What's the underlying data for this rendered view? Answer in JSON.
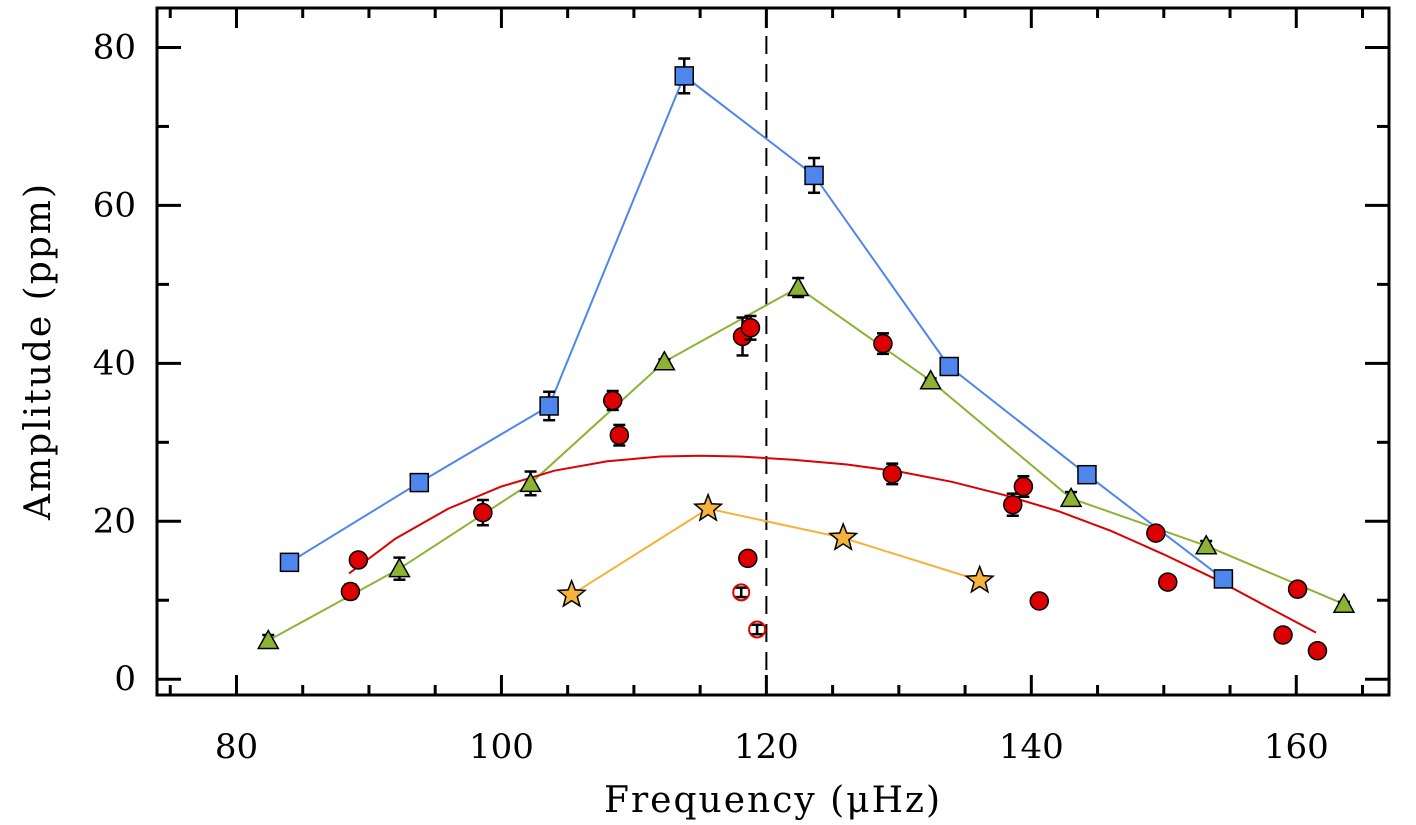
{
  "chart_data": {
    "type": "scatter",
    "title": "",
    "xlabel": "Frequency (μHz)",
    "ylabel": "Amplitude (ppm)",
    "xlim": [
      74,
      167
    ],
    "ylim": [
      -2,
      85
    ],
    "x_ticks": [
      80,
      100,
      120,
      140,
      160
    ],
    "y_ticks": [
      0,
      20,
      40,
      60,
      80
    ],
    "x_tick_labels": [
      "80",
      "100",
      "120",
      "140",
      "160"
    ],
    "y_tick_labels": [
      "0",
      "20",
      "40",
      "60",
      "80"
    ],
    "vline": 120,
    "grid": false,
    "legend": "none",
    "series": [
      {
        "marker": "square",
        "color": "#4f86ee",
        "line": true,
        "points": [
          {
            "x": 84.0,
            "y": 14.8,
            "err": 0.5
          },
          {
            "x": 93.8,
            "y": 24.9,
            "err": 0.9
          },
          {
            "x": 103.6,
            "y": 34.6,
            "err": 1.8
          },
          {
            "x": 113.8,
            "y": 76.4,
            "err": 2.2
          },
          {
            "x": 123.6,
            "y": 63.8,
            "err": 2.2
          },
          {
            "x": 133.8,
            "y": 39.6,
            "err": 0.5
          },
          {
            "x": 144.2,
            "y": 25.9,
            "err": 0.5
          },
          {
            "x": 154.5,
            "y": 12.7,
            "err": 0.5
          }
        ]
      },
      {
        "marker": "triangle",
        "color": "#8db334",
        "line": true,
        "points": [
          {
            "x": 82.4,
            "y": 4.9,
            "err": 0.7
          },
          {
            "x": 92.3,
            "y": 14.0,
            "err": 1.4
          },
          {
            "x": 102.2,
            "y": 24.8,
            "err": 1.5
          },
          {
            "x": 112.3,
            "y": 40.2,
            "err": 0.3
          },
          {
            "x": 122.4,
            "y": 49.6,
            "err": 1.2
          },
          {
            "x": 132.4,
            "y": 37.8,
            "err": 0.3
          },
          {
            "x": 143.0,
            "y": 22.9,
            "err": 0.8
          },
          {
            "x": 153.2,
            "y": 16.9,
            "err": 0.6
          },
          {
            "x": 163.6,
            "y": 9.5,
            "err": 0.3
          }
        ]
      },
      {
        "marker": "star",
        "color": "#f5b23c",
        "line": true,
        "points": [
          {
            "x": 105.3,
            "y": 10.7
          },
          {
            "x": 115.6,
            "y": 21.6
          },
          {
            "x": 125.8,
            "y": 17.9
          },
          {
            "x": 136.1,
            "y": 12.5
          }
        ]
      },
      {
        "marker": "circle",
        "color": "#dd0000",
        "line": false,
        "points": [
          {
            "x": 88.6,
            "y": 11.1,
            "err": 0.9
          },
          {
            "x": 89.2,
            "y": 15.1,
            "err": 0.6
          },
          {
            "x": 98.6,
            "y": 21.1,
            "err": 1.6
          },
          {
            "x": 108.4,
            "y": 35.3,
            "err": 1.2
          },
          {
            "x": 108.9,
            "y": 30.9,
            "err": 1.3
          },
          {
            "x": 118.2,
            "y": 43.4,
            "err": 2.4
          },
          {
            "x": 118.8,
            "y": 44.5,
            "err": 1.5
          },
          {
            "x": 118.6,
            "y": 15.3,
            "err": 0.3
          },
          {
            "x": 129.5,
            "y": 26.0,
            "err": 1.3
          },
          {
            "x": 128.8,
            "y": 42.5,
            "err": 1.3
          },
          {
            "x": 138.6,
            "y": 22.1,
            "err": 1.4
          },
          {
            "x": 139.4,
            "y": 24.4,
            "err": 1.3
          },
          {
            "x": 140.6,
            "y": 9.9,
            "err": 0.3
          },
          {
            "x": 149.4,
            "y": 18.5,
            "err": 0.3
          },
          {
            "x": 150.3,
            "y": 12.3,
            "err": 0.3
          },
          {
            "x": 159.0,
            "y": 5.6,
            "err": 0.3
          },
          {
            "x": 160.1,
            "y": 11.4,
            "err": 0.3
          },
          {
            "x": 161.6,
            "y": 3.6,
            "err": 0.3
          }
        ]
      },
      {
        "marker": "open-circle",
        "color": "#dd0000",
        "line": false,
        "points": [
          {
            "x": 118.1,
            "y": 11.0,
            "err": 0.6
          },
          {
            "x": 119.3,
            "y": 6.3,
            "err": 0.6
          }
        ]
      }
    ],
    "fit_curve": {
      "color": "#dd0000",
      "points": [
        {
          "x": 88.5,
          "y": 13.4
        },
        {
          "x": 92.0,
          "y": 17.8
        },
        {
          "x": 96.0,
          "y": 21.6
        },
        {
          "x": 100.0,
          "y": 24.4
        },
        {
          "x": 104.0,
          "y": 26.4
        },
        {
          "x": 108.0,
          "y": 27.6
        },
        {
          "x": 112.0,
          "y": 28.2
        },
        {
          "x": 115.0,
          "y": 28.3
        },
        {
          "x": 118.0,
          "y": 28.2
        },
        {
          "x": 122.0,
          "y": 27.8
        },
        {
          "x": 126.0,
          "y": 27.2
        },
        {
          "x": 130.0,
          "y": 26.3
        },
        {
          "x": 134.0,
          "y": 25.0
        },
        {
          "x": 138.0,
          "y": 23.3
        },
        {
          "x": 142.0,
          "y": 21.3
        },
        {
          "x": 146.0,
          "y": 18.8
        },
        {
          "x": 150.0,
          "y": 15.8
        },
        {
          "x": 154.0,
          "y": 12.6
        },
        {
          "x": 158.0,
          "y": 9.0
        },
        {
          "x": 161.5,
          "y": 5.9
        }
      ]
    }
  }
}
